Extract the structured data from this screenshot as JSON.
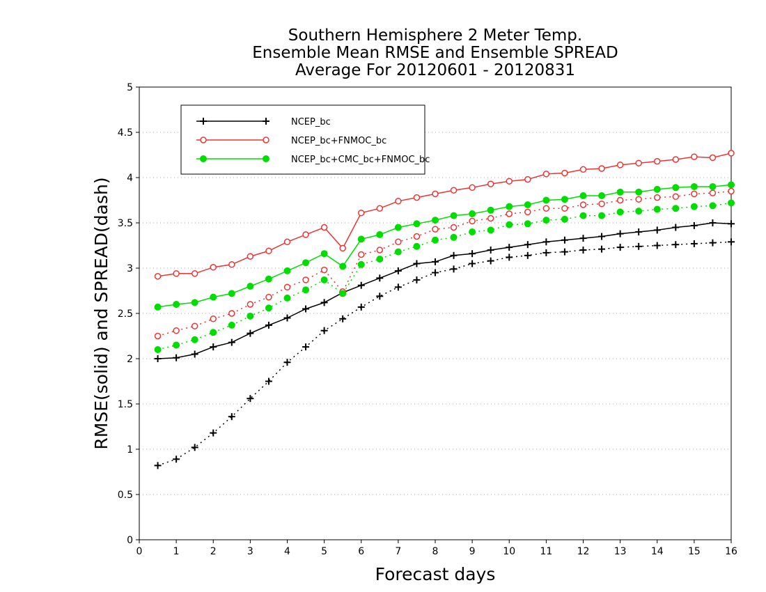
{
  "chart_data": {
    "type": "line",
    "title_lines": [
      "Southern Hemisphere 2 Meter Temp.",
      "Ensemble Mean RMSE and Ensemble SPREAD",
      "Average For 20120601 - 20120831"
    ],
    "xlabel": "Forecast days",
    "ylabel": "RMSE(solid) and SPREAD(dash)",
    "xlim": [
      0,
      16
    ],
    "ylim": [
      0,
      5
    ],
    "xticks": [
      0,
      1,
      2,
      3,
      4,
      5,
      6,
      7,
      8,
      9,
      10,
      11,
      12,
      13,
      14,
      15,
      16
    ],
    "yticks": [
      0,
      0.5,
      1,
      1.5,
      2,
      2.5,
      3,
      3.5,
      4,
      4.5,
      5
    ],
    "ytick_labels": [
      "0",
      "0.5",
      "1",
      "1.5",
      "2",
      "2.5",
      "3",
      "3.5",
      "4",
      "4.5",
      "5"
    ],
    "grid": "horizontal-dotted",
    "legend_position": "top-left",
    "x": [
      0.5,
      1,
      1.5,
      2,
      2.5,
      3,
      3.5,
      4,
      4.5,
      5,
      5.5,
      6,
      6.5,
      7,
      7.5,
      8,
      8.5,
      9,
      9.5,
      10,
      10.5,
      11,
      11.5,
      12,
      12.5,
      13,
      13.5,
      14,
      14.5,
      15,
      15.5,
      16
    ],
    "series": [
      {
        "name": "NCEP_bc",
        "color": "#000000",
        "marker": "plus",
        "rmse": [
          2.0,
          2.01,
          2.05,
          2.13,
          2.18,
          2.28,
          2.37,
          2.45,
          2.55,
          2.62,
          2.73,
          2.81,
          2.89,
          2.97,
          3.05,
          3.07,
          3.14,
          3.16,
          3.2,
          3.23,
          3.26,
          3.29,
          3.31,
          3.33,
          3.35,
          3.38,
          3.4,
          3.42,
          3.45,
          3.47,
          3.5,
          3.49
        ],
        "spread": [
          0.82,
          0.89,
          1.02,
          1.18,
          1.36,
          1.56,
          1.75,
          1.96,
          2.13,
          2.31,
          2.44,
          2.57,
          2.69,
          2.79,
          2.87,
          2.95,
          2.99,
          3.05,
          3.08,
          3.12,
          3.14,
          3.17,
          3.18,
          3.2,
          3.21,
          3.23,
          3.24,
          3.25,
          3.26,
          3.27,
          3.28,
          3.29
        ]
      },
      {
        "name": "NCEP_bc+FNMOC_bc",
        "color": "#ee3333",
        "marker": "open-circle",
        "rmse": [
          2.91,
          2.94,
          2.94,
          3.01,
          3.04,
          3.13,
          3.19,
          3.29,
          3.37,
          3.45,
          3.22,
          3.61,
          3.66,
          3.74,
          3.78,
          3.82,
          3.86,
          3.89,
          3.93,
          3.96,
          3.98,
          4.04,
          4.05,
          4.09,
          4.1,
          4.14,
          4.16,
          4.18,
          4.2,
          4.23,
          4.22,
          4.27
        ],
        "spread": [
          2.25,
          2.31,
          2.36,
          2.44,
          2.5,
          2.6,
          2.68,
          2.79,
          2.87,
          2.98,
          2.74,
          3.15,
          3.2,
          3.29,
          3.35,
          3.43,
          3.45,
          3.52,
          3.55,
          3.6,
          3.62,
          3.66,
          3.66,
          3.7,
          3.71,
          3.75,
          3.76,
          3.78,
          3.79,
          3.82,
          3.83,
          3.85
        ]
      },
      {
        "name": "NCEP_bc+CMC_bc+FNMOC_bc",
        "color": "#00dd00",
        "marker": "filled-circle",
        "rmse": [
          2.57,
          2.6,
          2.62,
          2.68,
          2.72,
          2.8,
          2.88,
          2.97,
          3.06,
          3.16,
          3.02,
          3.32,
          3.37,
          3.45,
          3.49,
          3.53,
          3.58,
          3.6,
          3.64,
          3.68,
          3.7,
          3.75,
          3.76,
          3.8,
          3.8,
          3.84,
          3.84,
          3.87,
          3.89,
          3.9,
          3.9,
          3.92
        ],
        "spread": [
          2.1,
          2.15,
          2.21,
          2.29,
          2.37,
          2.47,
          2.56,
          2.67,
          2.76,
          2.87,
          2.72,
          3.04,
          3.1,
          3.18,
          3.24,
          3.31,
          3.34,
          3.4,
          3.42,
          3.48,
          3.49,
          3.53,
          3.54,
          3.58,
          3.58,
          3.62,
          3.63,
          3.65,
          3.66,
          3.68,
          3.69,
          3.72
        ]
      }
    ]
  }
}
